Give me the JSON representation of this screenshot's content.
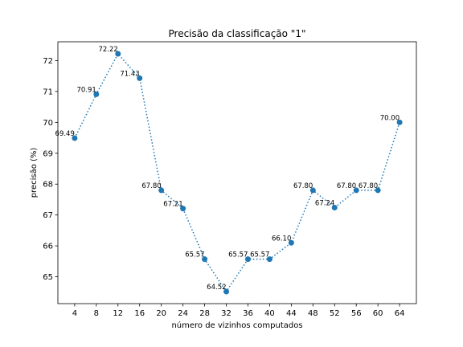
{
  "chart_data": {
    "type": "line",
    "title": "Precisão da classificação \"1\"",
    "xlabel": "número de vizinhos computados",
    "ylabel": "precisão (%)",
    "x": [
      4,
      8,
      12,
      16,
      20,
      24,
      28,
      32,
      36,
      40,
      44,
      48,
      52,
      56,
      60,
      64
    ],
    "x_ticks": [
      "4",
      "8",
      "12",
      "16",
      "20",
      "24",
      "28",
      "32",
      "36",
      "40",
      "44",
      "48",
      "52",
      "56",
      "60",
      "64"
    ],
    "y_ticks": [
      65,
      66,
      67,
      68,
      69,
      70,
      71,
      72
    ],
    "series": [
      {
        "values": [
          69.49,
          70.91,
          72.22,
          71.43,
          67.8,
          67.21,
          65.57,
          64.52,
          65.57,
          65.57,
          66.1,
          67.8,
          67.24,
          67.8,
          67.8,
          70.0
        ],
        "labels": [
          "69.49",
          "70.91",
          "72.22",
          "71.43",
          "67.80",
          "67.21",
          "65.57",
          "64.52",
          "65.57",
          "65.57",
          "66.10",
          "67.80",
          "67.24",
          "67.80",
          "67.80",
          "70.00"
        ],
        "color": "#1f77b4",
        "line_style": "dotted",
        "marker": "circle"
      }
    ],
    "xlim": [
      0.9,
      67.1
    ],
    "ylim": [
      64.13,
      72.61
    ],
    "grid": false
  }
}
